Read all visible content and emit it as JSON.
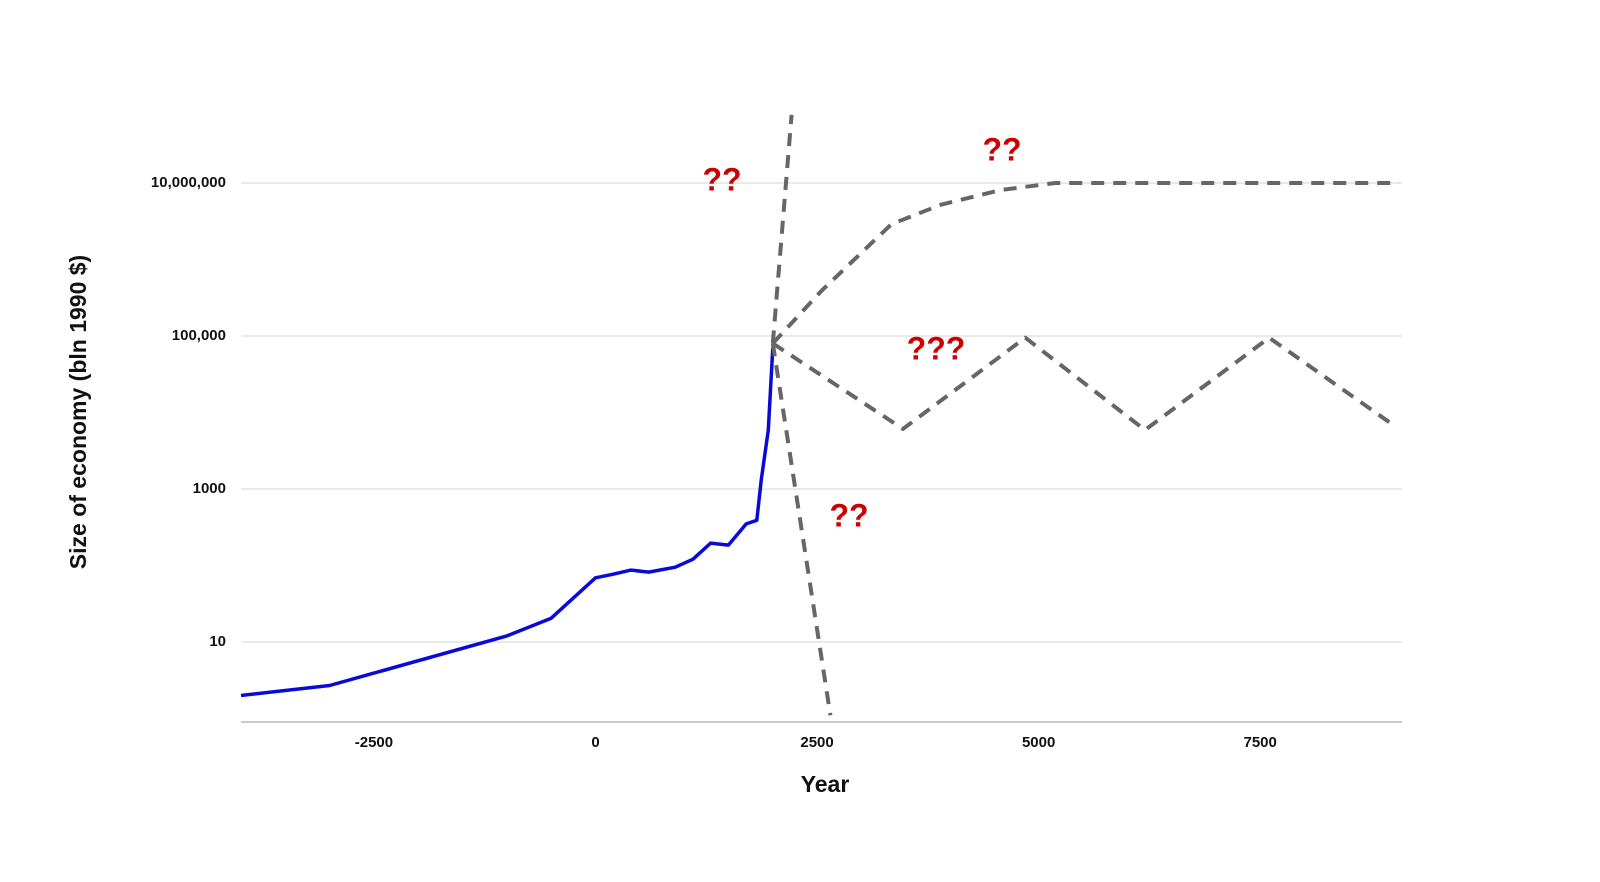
{
  "chart_data": {
    "type": "line",
    "x_label": "Year",
    "y_label": "Size of economy (bln 1990 $)",
    "log_y": true,
    "grid": true,
    "xlim": [
      -4000,
      9100
    ],
    "ylim": [
      0.9,
      100000000
    ],
    "xticks": [
      -2500,
      0,
      2500,
      5000,
      7500
    ],
    "yticks": [
      10,
      1000,
      {
        "value": 100000,
        "label": "100,000"
      },
      {
        "value": 10000000,
        "label": "10,000,000"
      }
    ],
    "series": [
      {
        "color": "#0a0ad8",
        "style": "solid",
        "x": [
          -4000,
          -3000,
          -1000,
          -500,
          0,
          200,
          400,
          600,
          900,
          1100,
          1300,
          1500,
          1700,
          1820,
          1870,
          1950,
          2000
        ],
        "values": [
          2,
          2.7,
          12,
          20.5,
          69,
          77,
          87,
          82,
          95,
          121,
          196,
          185,
          350,
          390,
          1300,
          5900,
          70000
        ]
      },
      {
        "color": "#666666",
        "style": "dashed",
        "x": [
          2000,
          2213
        ],
        "values": [
          80000,
          78000000
        ]
      },
      {
        "color": "#666666",
        "style": "dashed",
        "x": [
          2000,
          2650
        ],
        "values": [
          80000,
          1.1
        ]
      },
      {
        "color": "#666666",
        "style": "dashed",
        "x": [
          2000,
          2550,
          3340,
          3900,
          4570,
          5190,
          9070
        ],
        "values": [
          80000,
          390000,
          2900000,
          5200000,
          8100000,
          10000000,
          10000000
        ]
      },
      {
        "color": "#666666",
        "style": "dashed",
        "x": [
          2000,
          3470,
          4850,
          6200,
          7600,
          8990
        ],
        "values": [
          80000,
          6100,
          95000,
          5900,
          95000,
          7000
        ]
      }
    ],
    "annotations": [
      "??",
      "??",
      "???",
      "??"
    ],
    "annotation_color": "#cc0000"
  }
}
